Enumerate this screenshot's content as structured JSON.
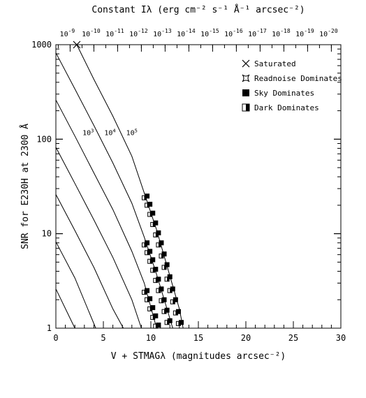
{
  "chart_data": {
    "type": "line",
    "title": "",
    "xlabel": "V + STMAGλ (magnitudes arcsec⁻²)",
    "ylabel": "SNR for E230H at 2300 Å",
    "top_axis_label": "Constant Iλ (erg cm⁻² s⁻¹ Å⁻¹ arcsec⁻²)",
    "xlim": [
      0,
      30
    ],
    "ylim": [
      1,
      1000
    ],
    "yscale": "log",
    "x_ticks": [
      "0",
      "5",
      "10",
      "15",
      "20",
      "25",
      "30"
    ],
    "y_ticks": [
      {
        "value": 1,
        "label": "1"
      },
      {
        "value": 10,
        "label": "10"
      },
      {
        "value": 100,
        "label": "100"
      },
      {
        "value": 1000,
        "label": "1000"
      }
    ],
    "top_ticks": [
      {
        "x": 1.5,
        "base": "10",
        "exp": "-9"
      },
      {
        "x": 4.0,
        "base": "10",
        "exp": "-10"
      },
      {
        "x": 6.5,
        "base": "10",
        "exp": "-11"
      },
      {
        "x": 9.0,
        "base": "10",
        "exp": "-12"
      },
      {
        "x": 11.5,
        "base": "10",
        "exp": "-13"
      },
      {
        "x": 14.0,
        "base": "10",
        "exp": "-14"
      },
      {
        "x": 16.5,
        "base": "10",
        "exp": "-15"
      },
      {
        "x": 19.0,
        "base": "10",
        "exp": "-16"
      },
      {
        "x": 21.5,
        "base": "10",
        "exp": "-17"
      },
      {
        "x": 24.0,
        "base": "10",
        "exp": "-18"
      },
      {
        "x": 26.5,
        "base": "10",
        "exp": "-19"
      },
      {
        "x": 29.0,
        "base": "10",
        "exp": "-20"
      }
    ],
    "legend_placement": "top-right",
    "legend": [
      {
        "symbol": "x",
        "label": "Saturated"
      },
      {
        "symbol": "star",
        "label": "Readnoise Dominates"
      },
      {
        "symbol": "filled",
        "label": "Sky Dominates"
      },
      {
        "symbol": "half",
        "label": "Dark Dominates"
      }
    ],
    "curve_labels": [
      {
        "base": "10",
        "exp": "3",
        "x": 2.8,
        "y": 110
      },
      {
        "base": "10",
        "exp": "4",
        "x": 5.1,
        "y": 110
      },
      {
        "base": "10",
        "exp": "5",
        "x": 7.4,
        "y": 110
      }
    ],
    "saturated_point": {
      "x": 2.2,
      "y": 1000
    },
    "series": [
      {
        "values": [
          [
            0,
            2.6
          ],
          [
            2.0,
            1.0
          ]
        ]
      },
      {
        "values": [
          [
            0,
            8.2
          ],
          [
            2.0,
            3.4
          ],
          [
            4.2,
            1.0
          ]
        ]
      },
      {
        "values": [
          [
            0,
            26
          ],
          [
            2.0,
            10.8
          ],
          [
            4.0,
            4.4
          ],
          [
            6.0,
            1.6
          ],
          [
            7.1,
            1.0
          ]
        ]
      },
      {
        "values": [
          [
            0,
            82
          ],
          [
            2.0,
            34
          ],
          [
            4.0,
            14
          ],
          [
            6.0,
            5.6
          ],
          [
            8.0,
            2.0
          ],
          [
            9.0,
            1.0
          ]
        ]
      },
      {
        "values": [
          [
            0,
            260
          ],
          [
            2.0,
            108
          ],
          [
            4.0,
            44
          ],
          [
            6.0,
            18
          ],
          [
            8.0,
            6.5
          ],
          [
            9.3,
            3.0
          ],
          [
            10.6,
            1.0
          ]
        ]
      },
      {
        "values": [
          [
            0,
            820
          ],
          [
            2.0,
            340
          ],
          [
            4.0,
            140
          ],
          [
            6.0,
            56
          ],
          [
            8.0,
            21
          ],
          [
            9.3,
            9.2
          ],
          [
            10.5,
            4.0
          ],
          [
            11.7,
            1.6
          ],
          [
            12.3,
            1.0
          ]
        ]
      },
      {
        "values": [
          [
            2.2,
            1000
          ],
          [
            4.0,
            430
          ],
          [
            6.0,
            175
          ],
          [
            8.0,
            66
          ],
          [
            9.3,
            27
          ],
          [
            10.6,
            11
          ],
          [
            11.8,
            4.2
          ],
          [
            13.0,
            1.6
          ],
          [
            13.4,
            1.0
          ]
        ]
      }
    ],
    "markers_dark": [
      {
        "x": 9.3,
        "y": 24
      },
      {
        "x": 9.6,
        "y": 20
      },
      {
        "x": 9.9,
        "y": 16
      },
      {
        "x": 10.2,
        "y": 12.5
      },
      {
        "x": 10.5,
        "y": 9.7
      },
      {
        "x": 10.8,
        "y": 7.6
      },
      {
        "x": 11.1,
        "y": 5.8
      },
      {
        "x": 11.4,
        "y": 4.4
      },
      {
        "x": 11.7,
        "y": 3.3
      },
      {
        "x": 12.0,
        "y": 2.5
      },
      {
        "x": 12.3,
        "y": 1.9
      },
      {
        "x": 12.6,
        "y": 1.45
      },
      {
        "x": 12.9,
        "y": 1.12
      },
      {
        "x": 9.3,
        "y": 7.6
      },
      {
        "x": 9.6,
        "y": 6.3
      },
      {
        "x": 9.9,
        "y": 5.1
      },
      {
        "x": 10.2,
        "y": 4.1
      },
      {
        "x": 10.5,
        "y": 3.2
      },
      {
        "x": 10.8,
        "y": 2.5
      },
      {
        "x": 11.1,
        "y": 1.95
      },
      {
        "x": 11.4,
        "y": 1.5
      },
      {
        "x": 11.7,
        "y": 1.15
      },
      {
        "x": 9.3,
        "y": 2.4
      },
      {
        "x": 9.6,
        "y": 2.0
      },
      {
        "x": 9.9,
        "y": 1.6
      },
      {
        "x": 10.2,
        "y": 1.3
      },
      {
        "x": 10.5,
        "y": 1.05
      }
    ],
    "markers_sky": [
      {
        "x": 9.6,
        "y": 25
      },
      {
        "x": 9.9,
        "y": 20.5
      },
      {
        "x": 10.2,
        "y": 16.5
      },
      {
        "x": 10.5,
        "y": 13
      },
      {
        "x": 10.8,
        "y": 10.2
      },
      {
        "x": 11.1,
        "y": 8
      },
      {
        "x": 11.4,
        "y": 6.1
      },
      {
        "x": 11.7,
        "y": 4.7
      },
      {
        "x": 12.0,
        "y": 3.5
      },
      {
        "x": 12.3,
        "y": 2.6
      },
      {
        "x": 12.6,
        "y": 2.0
      },
      {
        "x": 12.9,
        "y": 1.5
      },
      {
        "x": 13.2,
        "y": 1.15
      },
      {
        "x": 9.6,
        "y": 8
      },
      {
        "x": 9.9,
        "y": 6.5
      },
      {
        "x": 10.2,
        "y": 5.3
      },
      {
        "x": 10.5,
        "y": 4.2
      },
      {
        "x": 10.8,
        "y": 3.3
      },
      {
        "x": 11.1,
        "y": 2.6
      },
      {
        "x": 11.4,
        "y": 2.0
      },
      {
        "x": 11.7,
        "y": 1.55
      },
      {
        "x": 12.0,
        "y": 1.2
      },
      {
        "x": 9.6,
        "y": 2.5
      },
      {
        "x": 9.9,
        "y": 2.05
      },
      {
        "x": 10.2,
        "y": 1.65
      },
      {
        "x": 10.5,
        "y": 1.35
      },
      {
        "x": 10.8,
        "y": 1.08
      }
    ]
  }
}
